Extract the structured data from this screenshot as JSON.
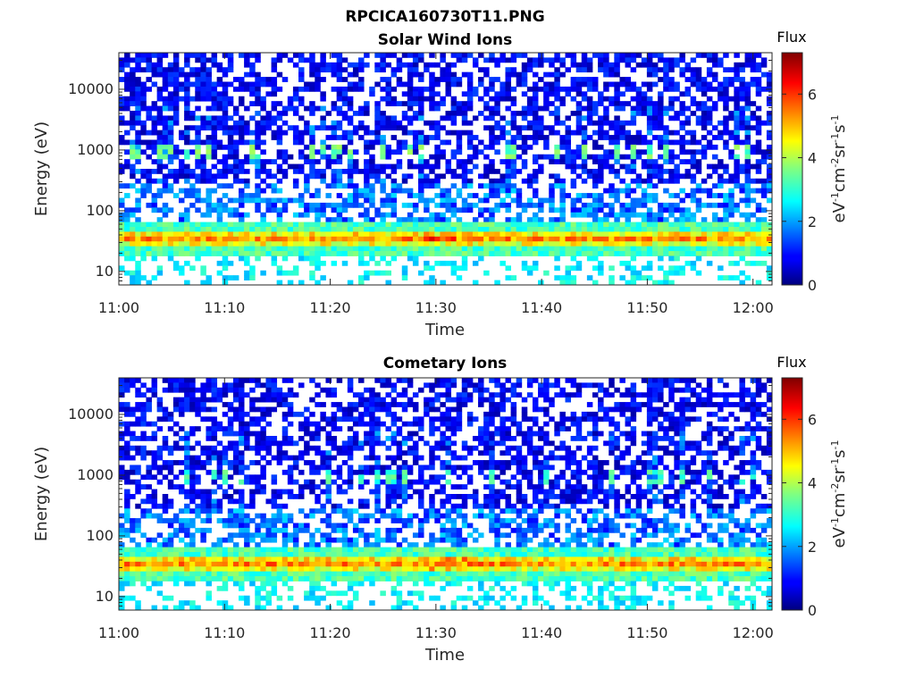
{
  "chart_data": {
    "figure_title": "RPCICA160730T11.PNG",
    "type": "heatmap",
    "panels": [
      {
        "title": "Solar Wind Ions",
        "type": "heatmap",
        "xlabel": "Time",
        "ylabel": "Energy (eV)",
        "yscale": "log",
        "ylim": [
          6,
          40000
        ],
        "x_tick_labels": [
          "11:00",
          "11:10",
          "11:20",
          "11:30",
          "11:40",
          "11:50",
          "12:00"
        ],
        "y_tick_labels": [
          "10",
          "100",
          "1000",
          "10000"
        ],
        "colorbar": {
          "title": "Flux",
          "label": "eV-1cm-2sr-1s-1",
          "range": [
            0,
            7.3
          ],
          "tick_labels": [
            "0",
            "2",
            "4",
            "6"
          ],
          "colormap": "jet"
        },
        "features": {
          "peak_band_energy_ev": 35,
          "peak_band_flux": 5.5,
          "secondary_band_energy_ev": 900,
          "secondary_band_flux": 3.5
        }
      },
      {
        "title": "Cometary Ions",
        "type": "heatmap",
        "xlabel": "Time",
        "ylabel": "Energy (eV)",
        "yscale": "log",
        "ylim": [
          6,
          40000
        ],
        "x_tick_labels": [
          "11:00",
          "11:10",
          "11:20",
          "11:30",
          "11:40",
          "11:50",
          "12:00"
        ],
        "y_tick_labels": [
          "10",
          "100",
          "1000",
          "10000"
        ],
        "colorbar": {
          "title": "Flux",
          "label": "eV-1cm-2sr-1s-1",
          "range": [
            0,
            7.3
          ],
          "tick_labels": [
            "0",
            "2",
            "4",
            "6"
          ],
          "colormap": "jet"
        },
        "features": {
          "peak_band_energy_ev": 35,
          "peak_band_flux": 5.5,
          "secondary_band_energy_ev": 900,
          "secondary_band_flux": 3.2
        }
      }
    ]
  }
}
